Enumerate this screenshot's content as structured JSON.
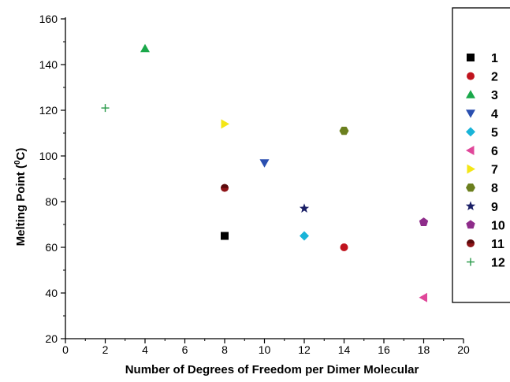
{
  "chart_data": {
    "type": "scatter",
    "title": "",
    "xlabel": "Number of Degrees of Freedom per Dimer Molecular",
    "ylabel_main": "Melting Point (",
    "ylabel_sup": "0",
    "ylabel_unit": "C)",
    "xlim": [
      0,
      20
    ],
    "ylim": [
      20,
      160
    ],
    "xticks": [
      0,
      2,
      4,
      6,
      8,
      10,
      12,
      14,
      16,
      18,
      20
    ],
    "yticks": [
      20,
      40,
      60,
      80,
      100,
      120,
      140,
      160
    ],
    "grid": false,
    "legend_position": "right",
    "series": [
      {
        "name": "1",
        "marker": "square",
        "color": "#000000",
        "x": [
          8
        ],
        "y": [
          65
        ]
      },
      {
        "name": "2",
        "marker": "circle",
        "color": "#c0141e",
        "x": [
          14
        ],
        "y": [
          60
        ]
      },
      {
        "name": "3",
        "marker": "triangle-up",
        "color": "#1aa84a",
        "x": [
          4
        ],
        "y": [
          147
        ]
      },
      {
        "name": "4",
        "marker": "triangle-down",
        "color": "#2a4fb0",
        "x": [
          10
        ],
        "y": [
          97
        ]
      },
      {
        "name": "5",
        "marker": "diamond",
        "color": "#19b4d8",
        "x": [
          12
        ],
        "y": [
          65
        ]
      },
      {
        "name": "6",
        "marker": "triangle-left",
        "color": "#e0479a",
        "x": [
          18
        ],
        "y": [
          38
        ]
      },
      {
        "name": "7",
        "marker": "triangle-right",
        "color": "#f4e616",
        "x": [
          8
        ],
        "y": [
          114
        ]
      },
      {
        "name": "8",
        "marker": "hexagon",
        "color": "#6b7f1e",
        "x": [
          14
        ],
        "y": [
          111
        ]
      },
      {
        "name": "9",
        "marker": "star",
        "color": "#1a1f66",
        "x": [
          12
        ],
        "y": [
          77
        ]
      },
      {
        "name": "10",
        "marker": "pentagon",
        "color": "#8e2c8a",
        "x": [
          18
        ],
        "y": [
          71
        ]
      },
      {
        "name": "11",
        "marker": "half-circle",
        "color": "#8e1418",
        "x": [
          8
        ],
        "y": [
          86
        ]
      },
      {
        "name": "12",
        "marker": "plus",
        "color": "#2a9a4a",
        "x": [
          2
        ],
        "y": [
          121
        ]
      }
    ]
  }
}
